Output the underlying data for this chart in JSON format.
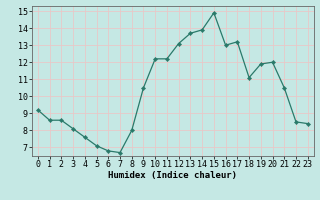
{
  "x": [
    0,
    1,
    2,
    3,
    4,
    5,
    6,
    7,
    8,
    9,
    10,
    11,
    12,
    13,
    14,
    15,
    16,
    17,
    18,
    19,
    20,
    21,
    22,
    23
  ],
  "y": [
    9.2,
    8.6,
    8.6,
    8.1,
    7.6,
    7.1,
    6.8,
    6.7,
    8.0,
    10.5,
    12.2,
    12.2,
    13.1,
    13.7,
    13.9,
    14.9,
    13.0,
    13.2,
    11.1,
    11.9,
    12.0,
    10.5,
    8.5,
    8.4
  ],
  "xlabel": "Humidex (Indice chaleur)",
  "xlim": [
    -0.5,
    23.5
  ],
  "ylim": [
    6.5,
    15.3
  ],
  "yticks": [
    7,
    8,
    9,
    10,
    11,
    12,
    13,
    14,
    15
  ],
  "xticks": [
    0,
    1,
    2,
    3,
    4,
    5,
    6,
    7,
    8,
    9,
    10,
    11,
    12,
    13,
    14,
    15,
    16,
    17,
    18,
    19,
    20,
    21,
    22,
    23
  ],
  "line_color": "#2a7a6a",
  "marker_color": "#2a7a6a",
  "bg_color": "#c5e8e4",
  "grid_color": "#e8c8c8",
  "xlabel_fontsize": 6.5,
  "tick_fontsize": 6.0,
  "marker_size": 2.2,
  "line_width": 0.9
}
